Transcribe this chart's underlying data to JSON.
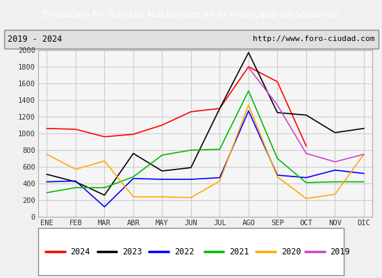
{
  "title_display": "Evolucion Nº Turistas Nacionales en el municipio de Sasamón",
  "subtitle_left": "2019 - 2024",
  "subtitle_right": "http://www.foro-ciudad.com",
  "months": [
    "ENE",
    "FEB",
    "MAR",
    "ABR",
    "MAY",
    "JUN",
    "JUL",
    "AGO",
    "SEP",
    "OCT",
    "NOV",
    "DIC"
  ],
  "series": {
    "2024": {
      "color": "#ff0000",
      "data": [
        1060,
        1050,
        960,
        990,
        1100,
        1260,
        1300,
        1800,
        1620,
        850,
        null,
        null
      ]
    },
    "2023": {
      "color": "#000000",
      "data": [
        510,
        420,
        260,
        760,
        550,
        590,
        1300,
        1970,
        1250,
        1220,
        1010,
        1060
      ]
    },
    "2022": {
      "color": "#0000ff",
      "data": [
        420,
        430,
        120,
        460,
        450,
        450,
        470,
        1270,
        500,
        470,
        560,
        520
      ]
    },
    "2021": {
      "color": "#00bb00",
      "data": [
        290,
        350,
        350,
        480,
        740,
        800,
        810,
        1510,
        700,
        410,
        420,
        420
      ]
    },
    "2020": {
      "color": "#ffaa00",
      "data": [
        750,
        570,
        670,
        240,
        240,
        230,
        430,
        1340,
        480,
        220,
        270,
        750
      ]
    },
    "2019": {
      "color": "#cc44cc",
      "data": [
        null,
        null,
        null,
        null,
        null,
        null,
        null,
        1790,
        1340,
        760,
        660,
        750
      ]
    }
  },
  "ylim": [
    0,
    2000
  ],
  "yticks": [
    0,
    200,
    400,
    600,
    800,
    1000,
    1200,
    1400,
    1600,
    1800,
    2000
  ],
  "background_color": "#f0f0f0",
  "title_bg_color": "#4472c4",
  "title_text_color": "#ffffff",
  "plot_bg_color": "#f5f5f5",
  "grid_color": "#cccccc",
  "subtitle_bg_color": "#e0e0e0"
}
